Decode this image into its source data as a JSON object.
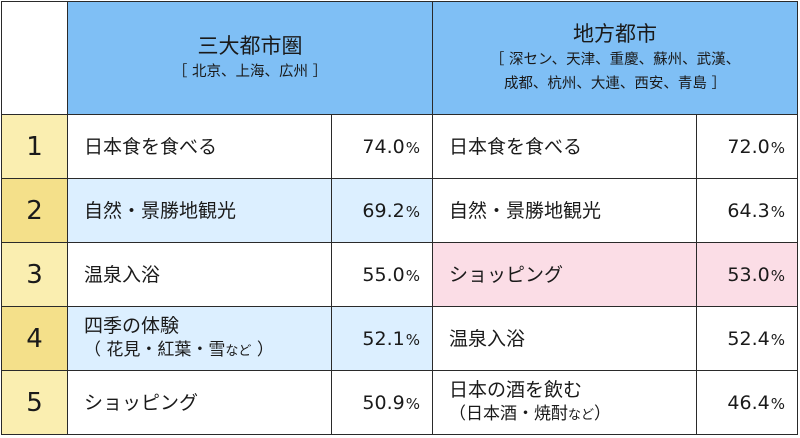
{
  "chart_data": {
    "type": "table",
    "columns": [
      {
        "title": "三大都市圏",
        "subtitle_lines": [
          "［ 北京、上海、広州 ］"
        ]
      },
      {
        "title": "地方都市",
        "subtitle_lines": [
          "［ 深セン、天津、重慶、蘇州、武漢、",
          "成都、杭州、大連、西安、青島 ］"
        ]
      }
    ],
    "unit": "%",
    "rows": [
      {
        "rank": "1",
        "left": {
          "item": "日本食を食べる",
          "value": "74.0"
        },
        "right": {
          "item": "日本食を食べる",
          "value": "72.0"
        }
      },
      {
        "rank": "2",
        "left": {
          "item": "自然・景勝地観光",
          "value": "69.2"
        },
        "right": {
          "item": "自然・景勝地観光",
          "value": "64.3"
        }
      },
      {
        "rank": "3",
        "left": {
          "item": "温泉入浴",
          "value": "55.0"
        },
        "right": {
          "item": "ショッピング",
          "value": "53.0"
        }
      },
      {
        "rank": "4",
        "left": {
          "item": "四季の体験",
          "note_open": "（ 花見・紅葉・雪",
          "note_small": "など",
          "note_close": " ）",
          "value": "52.1"
        },
        "right": {
          "item": "温泉入浴",
          "value": "52.4"
        }
      },
      {
        "rank": "5",
        "left": {
          "item": "ショッピング",
          "value": "50.9"
        },
        "right": {
          "item": "日本の酒を飲む",
          "note_open": "（日本酒・焼酎",
          "note_small": "など",
          "note_close": "）",
          "value": "46.4"
        }
      }
    ],
    "highlight_colors": {
      "blue": "#dcefff",
      "pink": "#fbdde6",
      "header": "#7fbff5",
      "rank": "#faeeb0"
    }
  }
}
